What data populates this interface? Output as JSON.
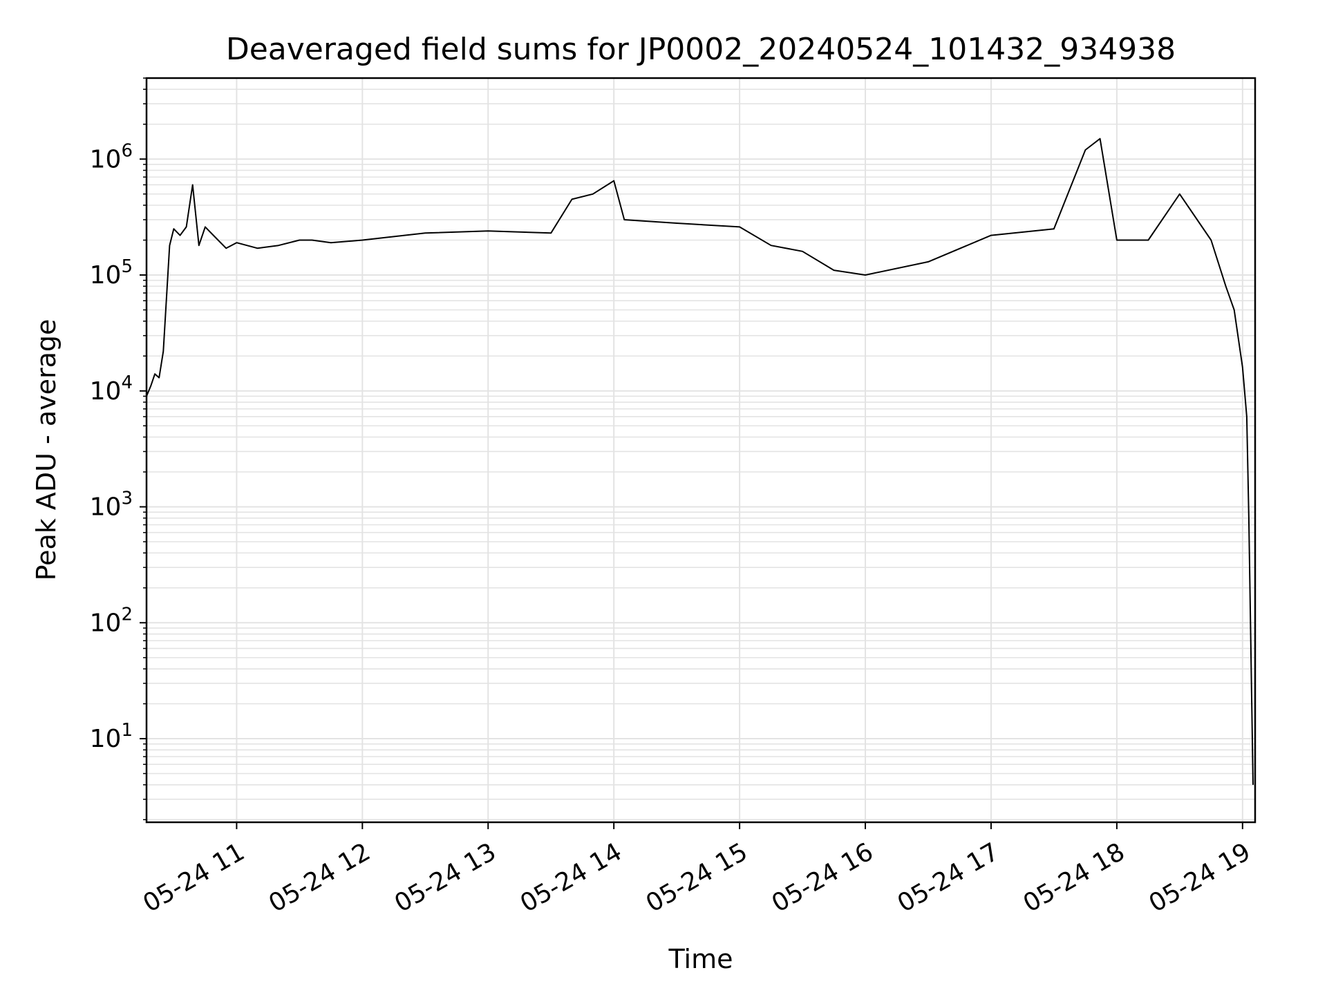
{
  "chart_data": {
    "type": "line",
    "title": "Deaveraged field sums for JP0002_20240524_101432_934938",
    "xlabel": "Time",
    "ylabel": "Peak ADU - average",
    "y_scale": "log",
    "ylim": [
      1.9,
      5000000
    ],
    "xlim": [
      "2024-05-24 10:17",
      "2024-05-24 19:06"
    ],
    "grid": true,
    "line_color": "#000000",
    "grid_color": "#e3e3e3",
    "x_ticks": [
      "05-24 11",
      "05-24 12",
      "05-24 13",
      "05-24 14",
      "05-24 15",
      "05-24 16",
      "05-24 17",
      "05-24 18",
      "05-24 19"
    ],
    "y_ticks": [
      {
        "base": "10",
        "exp": "1",
        "value": 10
      },
      {
        "base": "10",
        "exp": "2",
        "value": 100
      },
      {
        "base": "10",
        "exp": "3",
        "value": 1000
      },
      {
        "base": "10",
        "exp": "4",
        "value": 10000
      },
      {
        "base": "10",
        "exp": "5",
        "value": 100000
      },
      {
        "base": "10",
        "exp": "6",
        "value": 1000000
      }
    ],
    "series": [
      {
        "x": [
          "2024-05-24 10:17",
          "2024-05-24 10:19",
          "2024-05-24 10:21",
          "2024-05-24 10:23",
          "2024-05-24 10:25",
          "2024-05-24 10:28",
          "2024-05-24 10:30",
          "2024-05-24 10:33",
          "2024-05-24 10:36",
          "2024-05-24 10:39",
          "2024-05-24 10:42",
          "2024-05-24 10:45",
          "2024-05-24 10:50",
          "2024-05-24 10:55",
          "2024-05-24 11:00",
          "2024-05-24 11:10",
          "2024-05-24 11:20",
          "2024-05-24 11:30",
          "2024-05-24 11:36",
          "2024-05-24 11:45",
          "2024-05-24 12:00",
          "2024-05-24 12:30",
          "2024-05-24 13:00",
          "2024-05-24 13:30",
          "2024-05-24 13:40",
          "2024-05-24 13:50",
          "2024-05-24 14:00",
          "2024-05-24 14:05",
          "2024-05-24 14:30",
          "2024-05-24 15:00",
          "2024-05-24 15:15",
          "2024-05-24 15:30",
          "2024-05-24 15:45",
          "2024-05-24 16:00",
          "2024-05-24 16:30",
          "2024-05-24 17:00",
          "2024-05-24 17:30",
          "2024-05-24 17:45",
          "2024-05-24 17:52",
          "2024-05-24 18:00",
          "2024-05-24 18:15",
          "2024-05-24 18:30",
          "2024-05-24 18:45",
          "2024-05-24 18:52",
          "2024-05-24 18:56",
          "2024-05-24 19:00",
          "2024-05-24 19:02",
          "2024-05-24 19:03",
          "2024-05-24 19:05"
        ],
        "y": [
          9000,
          11000,
          14000,
          13000,
          22000,
          180000,
          250000,
          220000,
          260000,
          600000,
          180000,
          260000,
          210000,
          170000,
          190000,
          170000,
          180000,
          200000,
          200000,
          190000,
          200000,
          230000,
          240000,
          230000,
          450000,
          500000,
          650000,
          300000,
          280000,
          260000,
          180000,
          160000,
          110000,
          100000,
          130000,
          220000,
          250000,
          1200000,
          1500000,
          200000,
          200000,
          500000,
          200000,
          80000,
          50000,
          16000,
          6000,
          800,
          4
        ]
      }
    ]
  }
}
